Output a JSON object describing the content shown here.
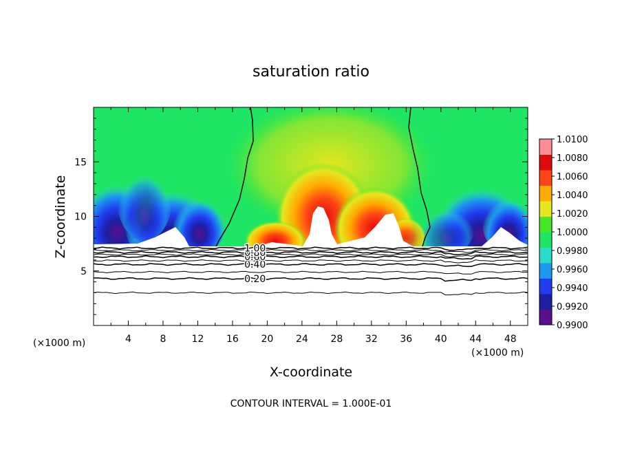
{
  "chart_data": {
    "type": "heatmap",
    "title": "saturation ratio",
    "xlabel": "X-coordinate",
    "ylabel": "Z-coordinate",
    "x_unit": "(×1000 m)",
    "xlim": [
      0,
      50
    ],
    "ylim": [
      0,
      20
    ],
    "x_ticks": [
      4,
      8,
      12,
      16,
      20,
      24,
      28,
      32,
      36,
      40,
      44,
      48
    ],
    "y_ticks": [
      5,
      10,
      15
    ],
    "colorbar": {
      "levels": [
        0.99,
        0.992,
        0.994,
        0.996,
        0.998,
        1.0,
        1.002,
        1.004,
        1.006,
        1.008,
        1.01
      ],
      "tick_labels": [
        "0.9900",
        "0.9920",
        "0.9940",
        "0.9960",
        "0.9980",
        "1.0000",
        "1.0020",
        "1.0040",
        "1.0060",
        "1.0080",
        "1.0100"
      ],
      "colors": [
        "#5a0f8c",
        "#1e1ea0",
        "#1f3cf0",
        "#1e96f0",
        "#28dcc8",
        "#1ee664",
        "#46e628",
        "#e6e61e",
        "#ffaa00",
        "#ff4614",
        "#e10a0a",
        "#ff8c96"
      ]
    },
    "contour_lines": [
      {
        "value": 0.2,
        "label": "0.20",
        "z": 4.3
      },
      {
        "value": 0.4,
        "label": "0.40",
        "z": 5.6
      },
      {
        "value": 0.6,
        "label": "0.60",
        "z": 6.3
      },
      {
        "value": 0.8,
        "label": "0.80",
        "z": 6.7
      },
      {
        "value": 1.0,
        "label": "1.00",
        "z": 7.1
      }
    ],
    "contour_interval_note": "CONTOUR INTERVAL = 1.000E-01"
  },
  "colors": {
    "frame": "#000000",
    "background": "#ffffff"
  }
}
